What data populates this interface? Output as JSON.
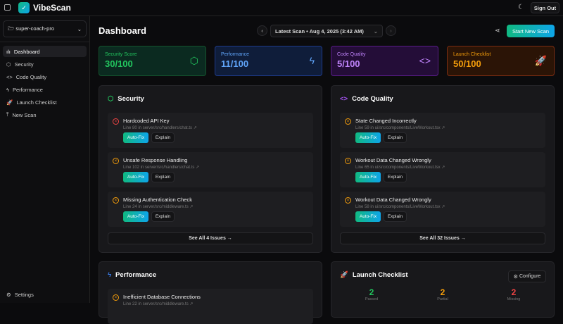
{
  "app": {
    "name": "VibeScan",
    "sign_out": "Sign Out"
  },
  "sidebar": {
    "project": "super-coach-pro",
    "items": [
      {
        "label": "Dashboard",
        "icon": "bar-chart-icon",
        "active": true
      },
      {
        "label": "Security",
        "icon": "shield-icon"
      },
      {
        "label": "Code Quality",
        "icon": "code-icon"
      },
      {
        "label": "Performance",
        "icon": "zap-icon"
      },
      {
        "label": "Launch Checklist",
        "icon": "rocket-icon"
      },
      {
        "label": "New Scan",
        "icon": "upload-icon"
      }
    ],
    "settings": "Settings"
  },
  "header": {
    "title": "Dashboard",
    "scan_select": "Latest Scan • Aug 4, 2025 (3:42 AM)",
    "new_scan": "Start New Scan"
  },
  "scores": [
    {
      "label": "Security Score",
      "value": "30/100",
      "color": "#22c55e"
    },
    {
      "label": "Performance",
      "value": "11/100",
      "color": "#3b82f6"
    },
    {
      "label": "Code Quality",
      "value": "5/100",
      "color": "#a855f7"
    },
    {
      "label": "Launch Checklist",
      "value": "50/100",
      "color": "#f59e0b"
    }
  ],
  "security": {
    "title": "Security",
    "issues": [
      {
        "title": "Hardcoded API Key",
        "location": "Line 80 in server/src/handlers/chat.ts",
        "severity": "critical"
      },
      {
        "title": "Unsafe Response Handling",
        "location": "Line 102 in server/src/handlers/chat.ts",
        "severity": "warning"
      },
      {
        "title": "Missing Authentication Check",
        "location": "Line 24 in server/src/middleware.ts",
        "severity": "warning"
      }
    ],
    "see_all": "See All 4 Issues →"
  },
  "code_quality": {
    "title": "Code Quality",
    "issues": [
      {
        "title": "State Changed Incorrectly",
        "location": "Line 59 in ui/src/components/LiveWorkout.tsx",
        "severity": "warning"
      },
      {
        "title": "Workout Data Changed Wrongly",
        "location": "Line 65 in ui/src/components/LiveWorkout.tsx",
        "severity": "warning"
      },
      {
        "title": "Workout Data Changed Wrongly",
        "location": "Line 58 in ui/src/components/LiveWorkout.tsx",
        "severity": "warning"
      }
    ],
    "see_all": "See All 32 Issues →"
  },
  "actions": {
    "autofix": "Auto-Fix",
    "explain": "Explain"
  },
  "performance": {
    "title": "Performance",
    "issues": [
      {
        "title": "Inefficient Database Connections",
        "location": "Line 22 in server/src/middleware.ts"
      }
    ]
  },
  "launch": {
    "title": "Launch Checklist",
    "configure": "Configure",
    "stats": [
      {
        "value": "2",
        "label": "Passed",
        "color": "#22c55e"
      },
      {
        "value": "2",
        "label": "Partial",
        "color": "#f59e0b"
      },
      {
        "value": "2",
        "label": "Missing",
        "color": "#ef4444"
      }
    ]
  }
}
